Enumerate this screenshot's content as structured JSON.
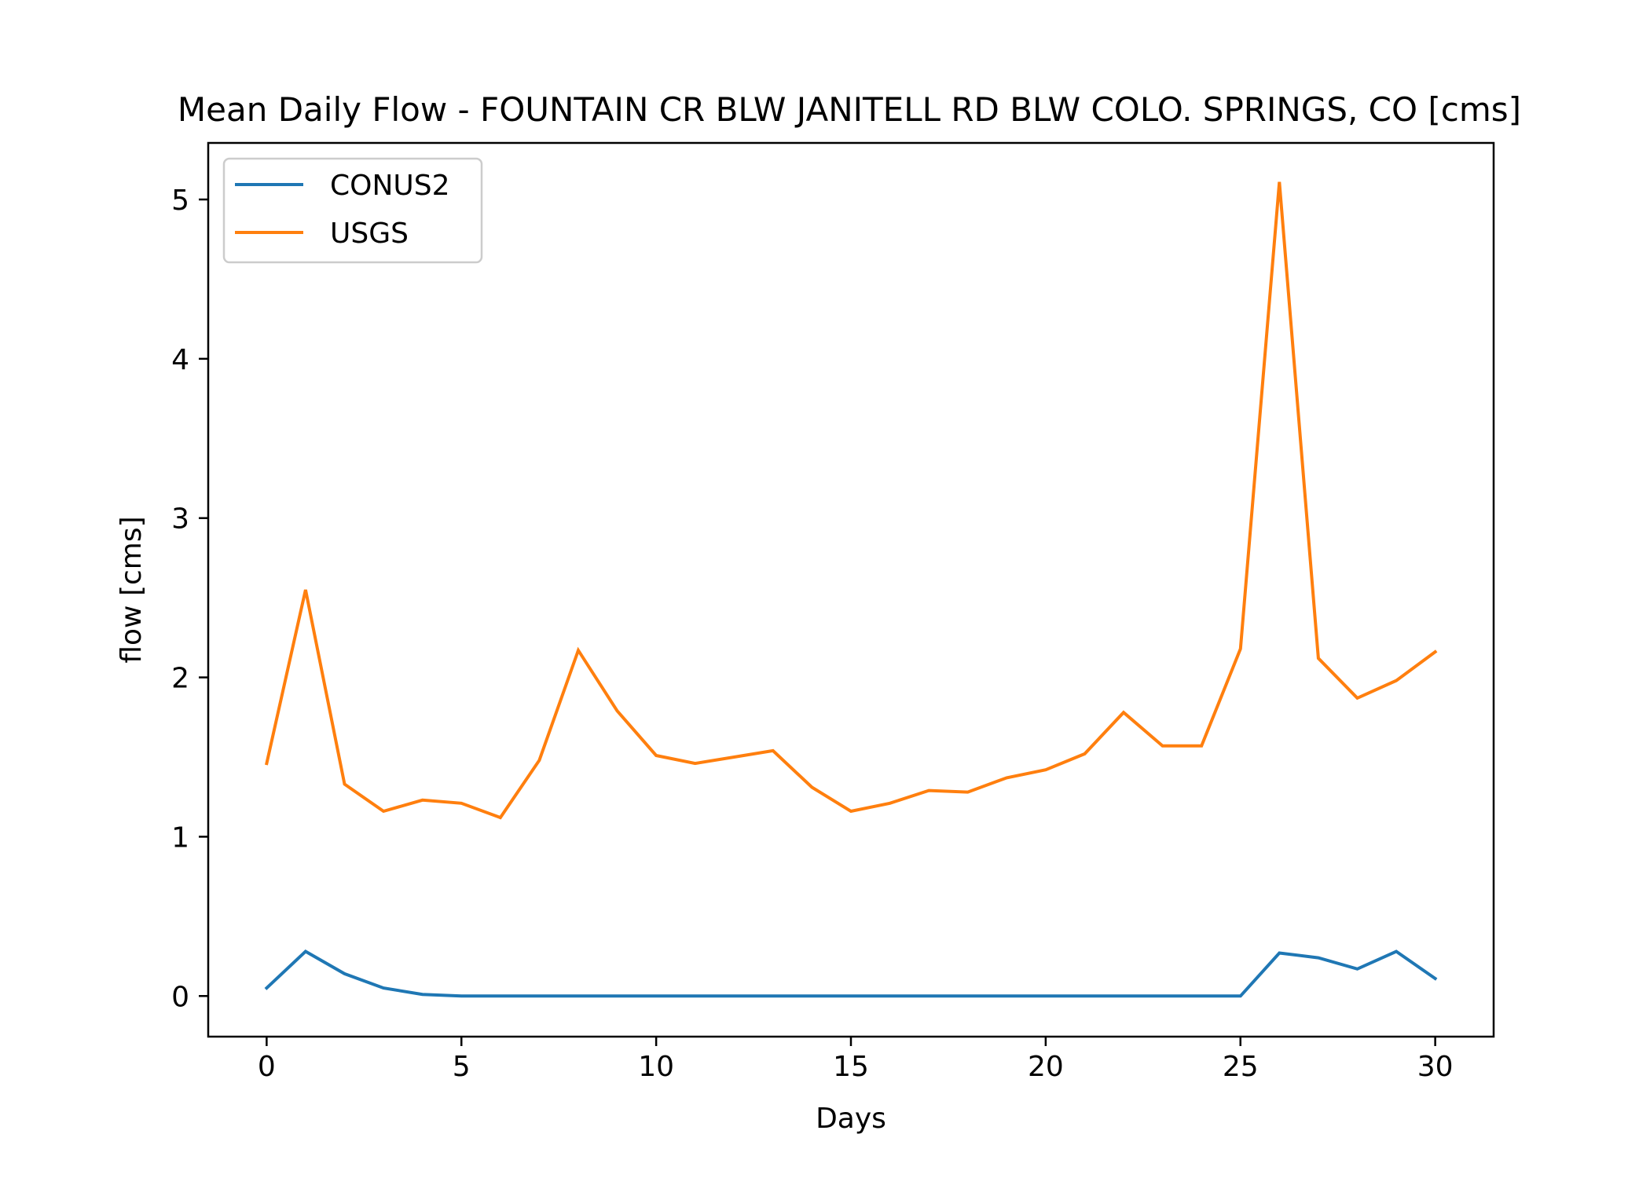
{
  "chart_data": {
    "type": "line",
    "title": "Mean Daily Flow - FOUNTAIN CR BLW JANITELL RD BLW COLO. SPRINGS, CO [cms]",
    "xlabel": "Days",
    "ylabel": "flow [cms]",
    "xlim": [
      -1.5,
      31.5
    ],
    "ylim": [
      -0.255,
      5.355
    ],
    "xticks": [
      0,
      5,
      10,
      15,
      20,
      25,
      30
    ],
    "xtick_labels": [
      "0",
      "5",
      "10",
      "15",
      "20",
      "25",
      "30"
    ],
    "yticks": [
      0,
      1,
      2,
      3,
      4,
      5
    ],
    "ytick_labels": [
      "0",
      "1",
      "2",
      "3",
      "4",
      "5"
    ],
    "grid": false,
    "legend_position": "upper-left",
    "x": [
      0,
      1,
      2,
      3,
      4,
      5,
      6,
      7,
      8,
      9,
      10,
      11,
      12,
      13,
      14,
      15,
      16,
      17,
      18,
      19,
      20,
      21,
      22,
      23,
      24,
      25,
      26,
      27,
      28,
      29,
      30
    ],
    "series": [
      {
        "name": "CONUS2",
        "color": "#1f77b4",
        "values": [
          0.05,
          0.28,
          0.14,
          0.05,
          0.01,
          0.0,
          0.0,
          0.0,
          0.0,
          0.0,
          0.0,
          0.0,
          0.0,
          0.0,
          0.0,
          0.0,
          0.0,
          0.0,
          0.0,
          0.0,
          0.0,
          0.0,
          0.0,
          0.0,
          0.0,
          0.0,
          0.27,
          0.24,
          0.17,
          0.28,
          0.11
        ]
      },
      {
        "name": "USGS",
        "color": "#ff7f0e",
        "values": [
          1.46,
          2.55,
          1.33,
          1.16,
          1.23,
          1.21,
          1.12,
          1.48,
          2.17,
          1.79,
          1.51,
          1.46,
          1.5,
          1.54,
          1.31,
          1.16,
          1.21,
          1.29,
          1.28,
          1.37,
          1.42,
          1.52,
          1.78,
          1.57,
          1.57,
          2.18,
          5.11,
          2.12,
          1.87,
          1.98,
          2.16
        ]
      }
    ]
  }
}
